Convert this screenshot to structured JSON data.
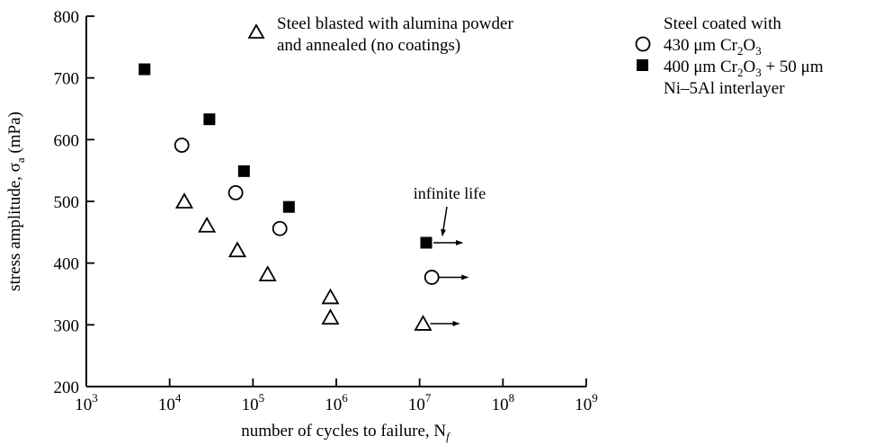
{
  "chart_data": {
    "type": "scatter",
    "xlabel": "number of cycles to failure, N",
    "xlabel_sub": "f",
    "ylabel": "stress amplitude, σ",
    "ylabel_sub": "a",
    "ylabel_unit": " (mPa)",
    "x_scale": "log",
    "xlim": [
      1000,
      1000000000
    ],
    "ylim": [
      200,
      800
    ],
    "x_ticks": [
      {
        "value": 1000,
        "base": "10",
        "exp": "3"
      },
      {
        "value": 10000,
        "base": "10",
        "exp": "4"
      },
      {
        "value": 100000,
        "base": "10",
        "exp": "5"
      },
      {
        "value": 1000000,
        "base": "10",
        "exp": "6"
      },
      {
        "value": 10000000,
        "base": "10",
        "exp": "7"
      },
      {
        "value": 100000000,
        "base": "10",
        "exp": "8"
      },
      {
        "value": 1000000000,
        "base": "10",
        "exp": "9"
      }
    ],
    "y_ticks": [
      200,
      300,
      400,
      500,
      600,
      700,
      800
    ],
    "grid": false,
    "series": [
      {
        "name": "Steel blasted with alumina powder and annealed (no coatings)",
        "marker": "open-triangle",
        "points": [
          {
            "x": 15000,
            "y": 500
          },
          {
            "x": 28000,
            "y": 461
          },
          {
            "x": 65000,
            "y": 421
          },
          {
            "x": 150000,
            "y": 382
          },
          {
            "x": 850000,
            "y": 345
          },
          {
            "x": 850000,
            "y": 312
          },
          {
            "x": 11000000,
            "y": 302,
            "runout": true
          }
        ]
      },
      {
        "name": "430 μm Cr2O3",
        "marker": "open-circle",
        "points": [
          {
            "x": 14000,
            "y": 591
          },
          {
            "x": 62000,
            "y": 514
          },
          {
            "x": 210000,
            "y": 456
          },
          {
            "x": 14000000,
            "y": 377,
            "runout": true
          }
        ]
      },
      {
        "name": "400 μm Cr2O3 + 50 μm Ni-5Al interlayer",
        "marker": "filled-square",
        "points": [
          {
            "x": 5000,
            "y": 714
          },
          {
            "x": 30000,
            "y": 633
          },
          {
            "x": 78000,
            "y": 549
          },
          {
            "x": 270000,
            "y": 491
          },
          {
            "x": 12000000,
            "y": 433,
            "runout": true
          }
        ]
      }
    ],
    "legend": {
      "triangle_line1": "Steel blasted with alumina powder",
      "triangle_line2": "and annealed (no coatings)",
      "coated_title": "Steel coated with",
      "circle_label": "430 μm Cr",
      "circle_sub": "2",
      "circle_label2": "O",
      "circle_sub2": "3",
      "square_label": "400 μm Cr",
      "square_sub": "2",
      "square_label2": "O",
      "square_sub2": "3",
      "square_label3": " + 50 μm",
      "square_line2": "Ni–5Al  interlayer"
    },
    "annotation": "infinite life"
  }
}
